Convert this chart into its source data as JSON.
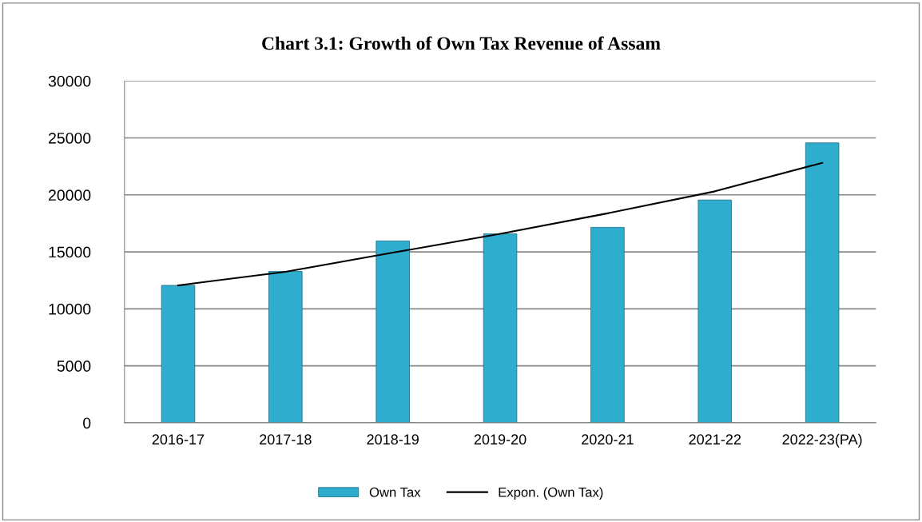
{
  "chart_data": {
    "type": "bar",
    "title": "Chart 3.1: Growth of Own Tax Revenue of Assam",
    "categories": [
      "2016-17",
      "2017-18",
      "2018-19",
      "2019-20",
      "2020-21",
      "2021-22",
      "2022-23(PA)"
    ],
    "series": [
      {
        "name": "Own Tax",
        "color": "#2fadcf",
        "values": [
          12060,
          13280,
          15960,
          16580,
          17150,
          19550,
          24560
        ]
      },
      {
        "name": "Expon. (Own Tax)",
        "type": "line",
        "color": "#000000",
        "values": [
          12060,
          13250,
          14930,
          16580,
          18380,
          20310,
          22810
        ]
      }
    ],
    "ylim": [
      0,
      30000
    ],
    "yticks": [
      0,
      5000,
      10000,
      15000,
      20000,
      25000,
      30000
    ],
    "grid": "y",
    "legend": "bottom"
  }
}
